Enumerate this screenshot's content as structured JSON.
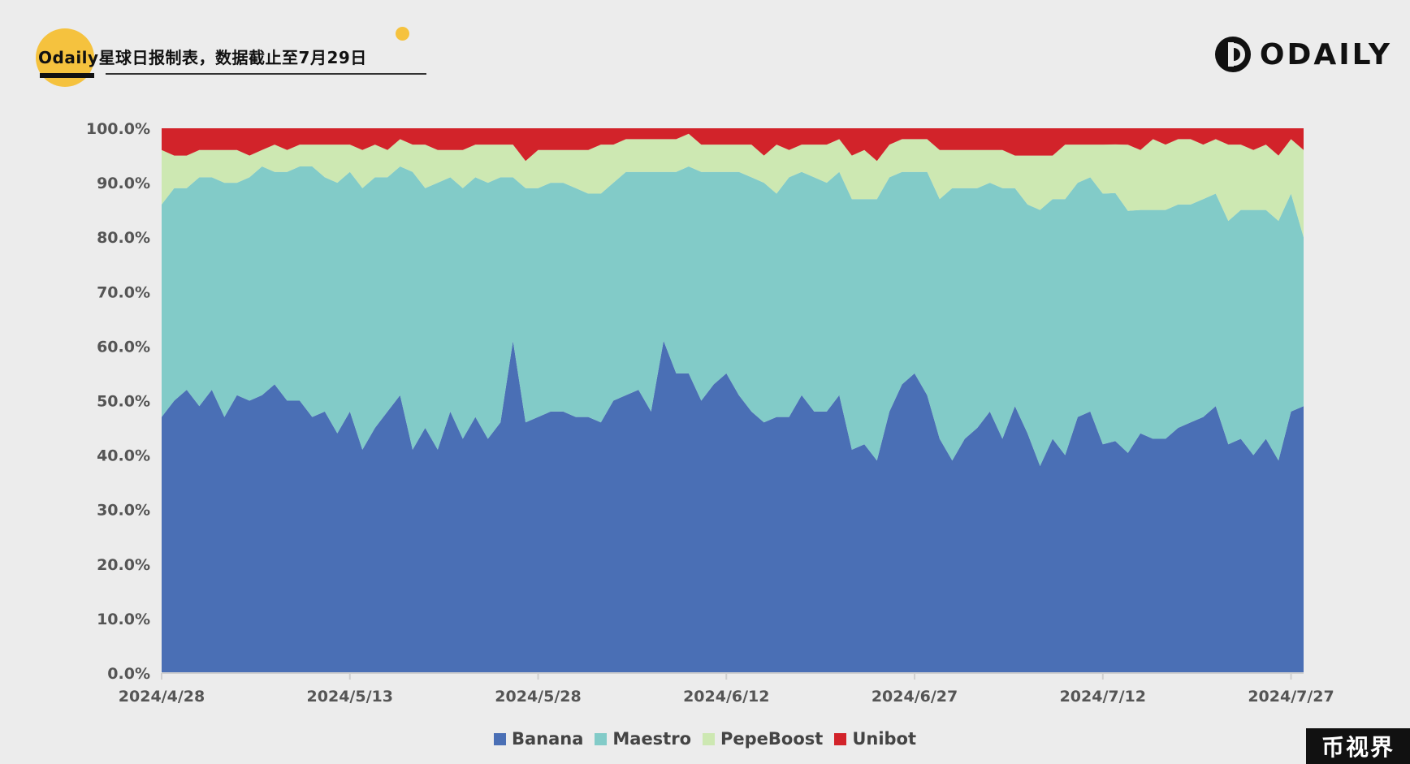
{
  "header": {
    "title": "Odaily星球日报制表，数据截止至7月29日"
  },
  "brand": {
    "logo_text": "ODAILY",
    "corner_mark": "币视界"
  },
  "chart_data": {
    "type": "area",
    "stacked": true,
    "normalized": true,
    "title": "",
    "xlabel": "",
    "ylabel": "",
    "ylim": [
      0,
      100
    ],
    "y_ticks": [
      "0.0%",
      "10.0%",
      "20.0%",
      "30.0%",
      "40.0%",
      "50.0%",
      "60.0%",
      "70.0%",
      "80.0%",
      "90.0%",
      "100.0%"
    ],
    "x_tick_labels": [
      "2024/4/28",
      "2024/5/13",
      "2024/5/28",
      "2024/6/12",
      "2024/6/27",
      "2024/7/12",
      "2024/7/27"
    ],
    "x_start": "2024/4/28",
    "x_end": "2024/7/28",
    "grid": false,
    "legend_position": "bottom",
    "series": [
      {
        "name": "Banana",
        "color": "#4a6fb5",
        "values": [
          47,
          50,
          52,
          49,
          52,
          47,
          51,
          50,
          51,
          53,
          50,
          50,
          47,
          48,
          44,
          48,
          41,
          45,
          48,
          51,
          41,
          45,
          41,
          48,
          43,
          47,
          43,
          46,
          61,
          46,
          47,
          48,
          48,
          47,
          47,
          46,
          50,
          51,
          52,
          48,
          61,
          55,
          55,
          50,
          53,
          55,
          51,
          48,
          46,
          47,
          47,
          51,
          48,
          48,
          51,
          41,
          42,
          39,
          48,
          53,
          55,
          51,
          43,
          39,
          43,
          45,
          48,
          43,
          49,
          44,
          38,
          43,
          40,
          47,
          48,
          42,
          43,
          40,
          44,
          43,
          43,
          45,
          46,
          47,
          49,
          42,
          43,
          40,
          43,
          39,
          48,
          49
        ]
      },
      {
        "name": "Maestro",
        "color": "#82cbc8",
        "values": [
          39,
          39,
          37,
          42,
          39,
          43,
          39,
          41,
          42,
          39,
          42,
          43,
          46,
          43,
          46,
          44,
          48,
          46,
          43,
          42,
          51,
          44,
          49,
          43,
          46,
          44,
          47,
          45,
          30,
          43,
          42,
          42,
          42,
          42,
          41,
          42,
          40,
          41,
          40,
          44,
          31,
          37,
          38,
          42,
          39,
          37,
          41,
          43,
          44,
          41,
          44,
          41,
          43,
          42,
          41,
          46,
          45,
          48,
          43,
          39,
          37,
          41,
          44,
          50,
          46,
          44,
          42,
          46,
          40,
          42,
          47,
          44,
          47,
          43,
          43,
          46,
          46,
          44,
          41,
          42,
          42,
          41,
          40,
          40,
          39,
          41,
          42,
          45,
          42,
          44,
          40,
          31
        ]
      },
      {
        "name": "PepeBoost",
        "color": "#cde8b2",
        "values": [
          10,
          6,
          6,
          5,
          5,
          6,
          6,
          4,
          3,
          5,
          4,
          4,
          4,
          6,
          7,
          5,
          7,
          6,
          5,
          5,
          5,
          8,
          6,
          5,
          7,
          6,
          7,
          6,
          6,
          5,
          7,
          6,
          6,
          7,
          8,
          9,
          7,
          6,
          6,
          6,
          6,
          6,
          6,
          5,
          5,
          5,
          5,
          6,
          5,
          9,
          5,
          5,
          6,
          7,
          6,
          8,
          9,
          7,
          6,
          6,
          6,
          6,
          9,
          7,
          7,
          7,
          6,
          7,
          6,
          9,
          10,
          8,
          10,
          7,
          6,
          9,
          9,
          12,
          11,
          13,
          12,
          12,
          12,
          10,
          10,
          14,
          12,
          11,
          12,
          12,
          10,
          16
        ]
      },
      {
        "name": "Unibot",
        "color": "#d2232a",
        "values": [
          4,
          5,
          5,
          4,
          4,
          4,
          4,
          5,
          4,
          3,
          4,
          3,
          3,
          3,
          3,
          3,
          4,
          3,
          4,
          2,
          3,
          3,
          4,
          4,
          4,
          3,
          3,
          3,
          3,
          6,
          4,
          4,
          4,
          4,
          4,
          3,
          3,
          2,
          2,
          2,
          2,
          2,
          1,
          3,
          3,
          3,
          3,
          3,
          5,
          3,
          4,
          3,
          3,
          3,
          2,
          5,
          4,
          6,
          3,
          2,
          2,
          2,
          4,
          4,
          4,
          4,
          4,
          4,
          5,
          5,
          5,
          5,
          3,
          3,
          3,
          3,
          3,
          3,
          4,
          2,
          3,
          2,
          2,
          3,
          2,
          3,
          3,
          4,
          3,
          5,
          2,
          4
        ]
      }
    ]
  }
}
